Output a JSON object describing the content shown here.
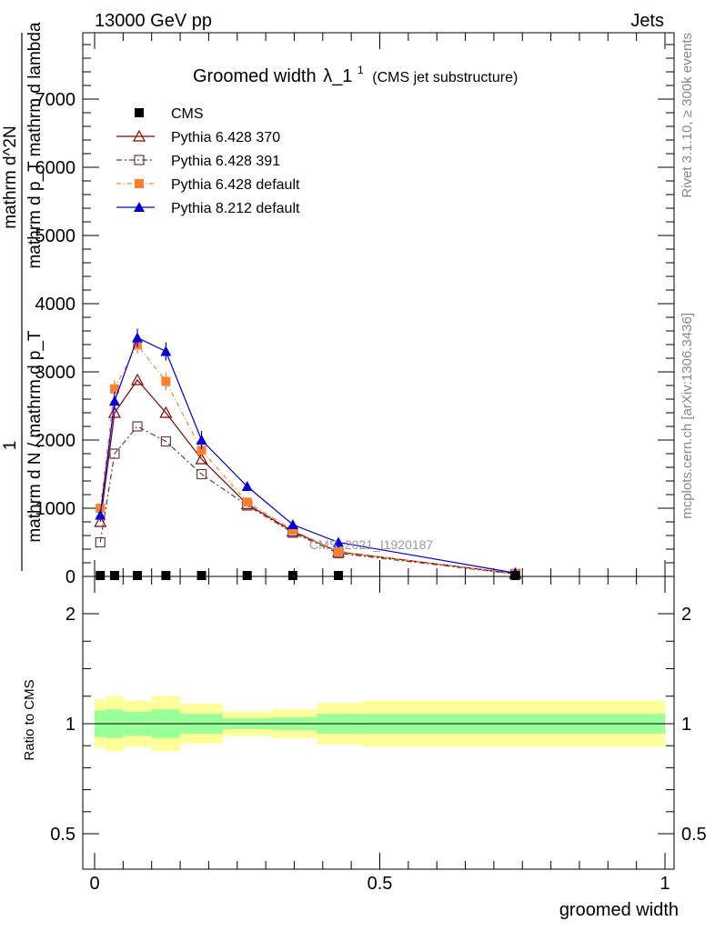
{
  "header": {
    "left": "13000 GeV pp",
    "right": "Jets",
    "side_top": "Rivet 3.1.10, ≥ 300k events",
    "side_bottom": "mcplots.cern.ch [arXiv:1306.3436]"
  },
  "chart_data": {
    "type": "line",
    "title": "Groomed width",
    "title_symbol": "λ_1",
    "title_sup": "1",
    "subtitle": "(CMS jet substructure)",
    "watermark": "CMS_2021_I1920187",
    "ylabel_numerator": "1",
    "ylabel_denominator": "mathrm d N / mathrm d p_T",
    "ylabel_right_top": "mathrm d^2N",
    "ylabel_right_bottom": "mathrm d p_T mathrm d lambda",
    "xlabel": "groomed width",
    "ratio_ylabel": "Ratio to CMS",
    "xlim": [
      0,
      1
    ],
    "ylim": [
      0,
      8000
    ],
    "ratio_ylim": [
      0.4,
      2.3
    ],
    "x_ticks": [
      "0",
      "0.5",
      "1"
    ],
    "y_ticks": [
      "0",
      "1000",
      "2000",
      "3000",
      "4000",
      "5000",
      "6000",
      "7000"
    ],
    "ratio_ticks": [
      "0.5",
      "1",
      "2"
    ],
    "x_centers": [
      0.01,
      0.035,
      0.075,
      0.125,
      0.1875,
      0.2675,
      0.3475,
      0.4275,
      0.7375
    ],
    "bin_edges": [
      0.0,
      0.02,
      0.05,
      0.1,
      0.15,
      0.225,
      0.31,
      0.39,
      0.47,
      1.0
    ],
    "ratio_bands": {
      "stat": [
        0.12,
        0.13,
        0.11,
        0.13,
        0.09,
        0.05,
        0.06,
        0.09,
        0.09
      ],
      "total": [
        0.22,
        0.25,
        0.21,
        0.25,
        0.18,
        0.11,
        0.13,
        0.19,
        0.21
      ]
    },
    "series": [
      {
        "name": "CMS",
        "color": "#000000",
        "marker": "square",
        "dash": "",
        "values": [
          0,
          0,
          0,
          0,
          0,
          0,
          0,
          0,
          0
        ]
      },
      {
        "name": "Pythia 6.428 370",
        "color": "#8b0000",
        "marker": "triangle-open",
        "dash": "",
        "values": [
          800,
          2400,
          2880,
          2400,
          1720,
          1060,
          660,
          360,
          40
        ]
      },
      {
        "name": "Pythia 6.428 391",
        "color": "#6a3d3d",
        "marker": "square-open",
        "dash": "6,3,2,3",
        "values": [
          500,
          1800,
          2200,
          1980,
          1500,
          1040,
          640,
          340,
          35
        ]
      },
      {
        "name": "Pythia 6.428 default",
        "color": "#ff7f2a",
        "marker": "square",
        "dash": "5,3,1,3",
        "values": [
          1000,
          2750,
          3400,
          2860,
          1850,
          1090,
          680,
          360,
          40
        ]
      },
      {
        "name": "Pythia 8.212 default",
        "color": "#0000dd",
        "marker": "triangle",
        "dash": "",
        "values": [
          900,
          2570,
          3500,
          3300,
          2000,
          1320,
          760,
          500,
          50
        ]
      }
    ]
  }
}
